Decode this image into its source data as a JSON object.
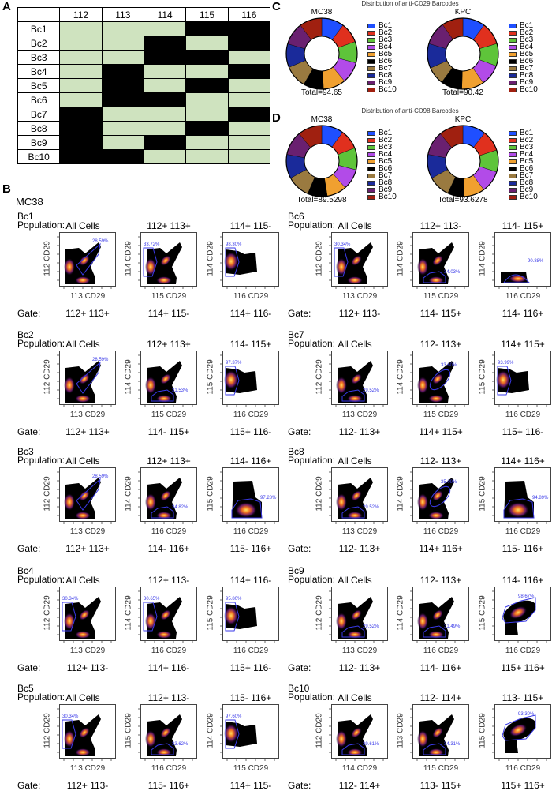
{
  "panel_a": {
    "letter": "A",
    "columns": [
      "112",
      "113",
      "114",
      "115",
      "116"
    ],
    "rows": [
      {
        "label": "Bc1",
        "filled": [
          1,
          1,
          1,
          0,
          0
        ]
      },
      {
        "label": "Bc2",
        "filled": [
          1,
          1,
          0,
          1,
          0
        ]
      },
      {
        "label": "Bc3",
        "filled": [
          1,
          1,
          0,
          0,
          1
        ]
      },
      {
        "label": "Bc4",
        "filled": [
          1,
          0,
          1,
          1,
          0
        ]
      },
      {
        "label": "Bc5",
        "filled": [
          1,
          0,
          1,
          0,
          1
        ]
      },
      {
        "label": "Bc6",
        "filled": [
          1,
          0,
          0,
          1,
          1
        ]
      },
      {
        "label": "Bc7",
        "filled": [
          0,
          1,
          1,
          1,
          0
        ]
      },
      {
        "label": "Bc8",
        "filled": [
          0,
          1,
          1,
          0,
          1
        ]
      },
      {
        "label": "Bc9",
        "filled": [
          0,
          1,
          0,
          1,
          1
        ]
      },
      {
        "label": "Bc10",
        "filled": [
          0,
          0,
          1,
          1,
          1
        ]
      }
    ],
    "colors": {
      "filled": "#cfe3bf",
      "empty": "#000000"
    }
  },
  "chart_data": [
    {
      "panel": "C",
      "type": "pie",
      "title": "Distribution of anti-CD29 Barcodes",
      "subtitle": "MC38",
      "total_label": "Total=94.65",
      "categories": [
        "Bc1",
        "Bc2",
        "Bc3",
        "Bc4",
        "Bc5",
        "Bc6",
        "Bc7",
        "Bc8",
        "Bc9",
        "Bc10"
      ],
      "values": [
        10,
        9,
        9.5,
        9.5,
        10,
        9,
        10,
        10.5,
        10,
        10
      ]
    },
    {
      "panel": "C",
      "type": "pie",
      "title": "Distribution of anti-CD29 Barcodes",
      "subtitle": "KPC",
      "total_label": "Total=90.42",
      "categories": [
        "Bc1",
        "Bc2",
        "Bc3",
        "Bc4",
        "Bc5",
        "Bc6",
        "Bc7",
        "Bc8",
        "Bc9",
        "Bc10"
      ],
      "values": [
        10,
        10,
        10,
        9.5,
        10,
        9.5,
        8,
        11,
        10.5,
        9.5
      ]
    },
    {
      "panel": "D",
      "type": "pie",
      "title": "Distribution of anti-CD98 Barcodes",
      "subtitle": "MC38",
      "total_label": "Total=89.5298",
      "categories": [
        "Bc1",
        "Bc2",
        "Bc3",
        "Bc4",
        "Bc5",
        "Bc6",
        "Bc7",
        "Bc8",
        "Bc9",
        "Bc10"
      ],
      "values": [
        10,
        9,
        10,
        9.5,
        9,
        9,
        10.5,
        11,
        11,
        11
      ]
    },
    {
      "panel": "D",
      "type": "pie",
      "title": "Distribution of anti-CD98 Barcodes",
      "subtitle": "KPC",
      "total_label": "Total=93.6278",
      "categories": [
        "Bc1",
        "Bc2",
        "Bc3",
        "Bc4",
        "Bc5",
        "Bc6",
        "Bc7",
        "Bc8",
        "Bc9",
        "Bc10"
      ],
      "values": [
        10.5,
        9.5,
        10,
        10,
        9.5,
        7.5,
        10,
        11,
        11,
        11
      ]
    }
  ],
  "panel_c": {
    "letter": "C",
    "title": "Distribution of anti-CD29 Barcodes"
  },
  "panel_d": {
    "letter": "D",
    "title": "Distribution of anti-CD98 Barcodes"
  },
  "barcode_colors": [
    "#1f4fff",
    "#e0301e",
    "#5ec43a",
    "#b24be8",
    "#f0a030",
    "#000000",
    "#9a7a40",
    "#1a2a9a",
    "#6a2070",
    "#a02010"
  ],
  "panel_b": {
    "letter": "B",
    "cell_line": "MC38",
    "population_label": "Population:",
    "gate_label": "Gate:",
    "gate_color": "#3a3ae8",
    "barcodes": [
      {
        "name": "Bc1",
        "plots": [
          {
            "population": "All Cells",
            "y": "112 CD29",
            "x": "113 CD29",
            "pct": "28.59%",
            "gate": "112+ 113+"
          },
          {
            "population": "112+ 113+",
            "y": "114 CD29",
            "x": "115 CD29",
            "pct": "33.72%",
            "gate": "114+ 115-"
          },
          {
            "population": "114+ 115-",
            "y": "114 CD29",
            "x": "116 CD29",
            "pct": "98.30%",
            "gate": "114+ 116-"
          }
        ]
      },
      {
        "name": "Bc2",
        "plots": [
          {
            "population": "All Cells",
            "y": "112 CD29",
            "x": "113 CD29",
            "pct": "28.59%",
            "gate": "112+ 113+"
          },
          {
            "population": "112+ 113+",
            "y": "114 CD29",
            "x": "115 CD29",
            "pct": "31.53%",
            "gate": "114- 115+"
          },
          {
            "population": "114- 115+",
            "y": "115 CD29",
            "x": "116 CD29",
            "pct": "97.37%",
            "gate": "115+ 116-"
          }
        ]
      },
      {
        "name": "Bc3",
        "plots": [
          {
            "population": "All Cells",
            "y": "112 CD29",
            "x": "113 CD29",
            "pct": "28.59%",
            "gate": "112+ 113+"
          },
          {
            "population": "112+ 113+",
            "y": "114 CD29",
            "x": "116 CD29",
            "pct": "34.82%",
            "gate": "114- 116+"
          },
          {
            "population": "114- 116+",
            "y": "115 CD29",
            "x": "116 CD29",
            "pct": "97.28%",
            "gate": "115- 116+"
          }
        ]
      },
      {
        "name": "Bc4",
        "plots": [
          {
            "population": "All Cells",
            "y": "112 CD29",
            "x": "113 CD29",
            "pct": "30.34%",
            "gate": "112+ 113-"
          },
          {
            "population": "112+ 113-",
            "y": "114 CD29",
            "x": "116 CD29",
            "pct": "30.65%",
            "gate": "114+ 116-"
          },
          {
            "population": "114+ 116-",
            "y": "115 CD29",
            "x": "116 CD29",
            "pct": "95.80%",
            "gate": "115+ 116-"
          }
        ]
      },
      {
        "name": "Bc5",
        "plots": [
          {
            "population": "All Cells",
            "y": "112 CD29",
            "x": "113 CD29",
            "pct": "30.34%",
            "gate": "112+ 113-"
          },
          {
            "population": "112+ 113-",
            "y": "115 CD29",
            "x": "116 CD29",
            "pct": "33.62%",
            "gate": "115- 116+"
          },
          {
            "population": "115- 116+",
            "y": "114 CD29",
            "x": "115 CD29",
            "pct": "97.60%",
            "gate": "114+ 115-"
          }
        ]
      },
      {
        "name": "Bc6",
        "plots": [
          {
            "population": "All Cells",
            "y": "112 CD29",
            "x": "113 CD29",
            "pct": "30.34%",
            "gate": "112+ 113-"
          },
          {
            "population": "112+ 113-",
            "y": "114 CD29",
            "x": "115 CD29",
            "pct": "34.03%",
            "gate": "114- 115+"
          },
          {
            "population": "114- 115+",
            "y": "114 CD29",
            "x": "116 CD29",
            "pct": "90.88%",
            "gate": "114- 116+"
          }
        ]
      },
      {
        "name": "Bc7",
        "plots": [
          {
            "population": "All Cells",
            "y": "112 CD29",
            "x": "113 CD29",
            "pct": "29.52%",
            "gate": "112- 113+"
          },
          {
            "population": "112- 113+",
            "y": "114 CD29",
            "x": "115 CD29",
            "pct": "33.60%",
            "gate": "114+ 115+"
          },
          {
            "population": "114+ 115+",
            "y": "115 CD29",
            "x": "116 CD29",
            "pct": "93.99%",
            "gate": "115+ 116-"
          }
        ]
      },
      {
        "name": "Bc8",
        "plots": [
          {
            "population": "All Cells",
            "y": "112 CD29",
            "x": "113 CD29",
            "pct": "29.52%",
            "gate": "112- 113+"
          },
          {
            "population": "112- 113+",
            "y": "114 CD29",
            "x": "116 CD29",
            "pct": "35.09%",
            "gate": "114+ 116+"
          },
          {
            "population": "114+ 116+",
            "y": "115 CD29",
            "x": "116 CD29",
            "pct": "94.89%",
            "gate": "115- 116+"
          }
        ]
      },
      {
        "name": "Bc9",
        "plots": [
          {
            "population": "All Cells",
            "y": "112 CD29",
            "x": "113 CD29",
            "pct": "29.52%",
            "gate": "112- 113+"
          },
          {
            "population": "112- 113+",
            "y": "114 CD29",
            "x": "116 CD29",
            "pct": "31.49%",
            "gate": "114- 116+"
          },
          {
            "population": "114- 116+",
            "y": "115 CD29",
            "x": "116 CD29",
            "pct": "98.67%",
            "gate": "115+ 116+"
          }
        ]
      },
      {
        "name": "Bc10",
        "plots": [
          {
            "population": "All Cells",
            "y": "112 CD29",
            "x": "114 CD29",
            "pct": "29.61%",
            "gate": "112- 114+"
          },
          {
            "population": "112- 114+",
            "y": "113 CD29",
            "x": "115 CD29",
            "pct": "34.31%",
            "gate": "113- 115+"
          },
          {
            "population": "113- 115+",
            "y": "115 CD29",
            "x": "116 CD29",
            "pct": "93.30%",
            "gate": "115+ 116+"
          }
        ]
      }
    ]
  }
}
